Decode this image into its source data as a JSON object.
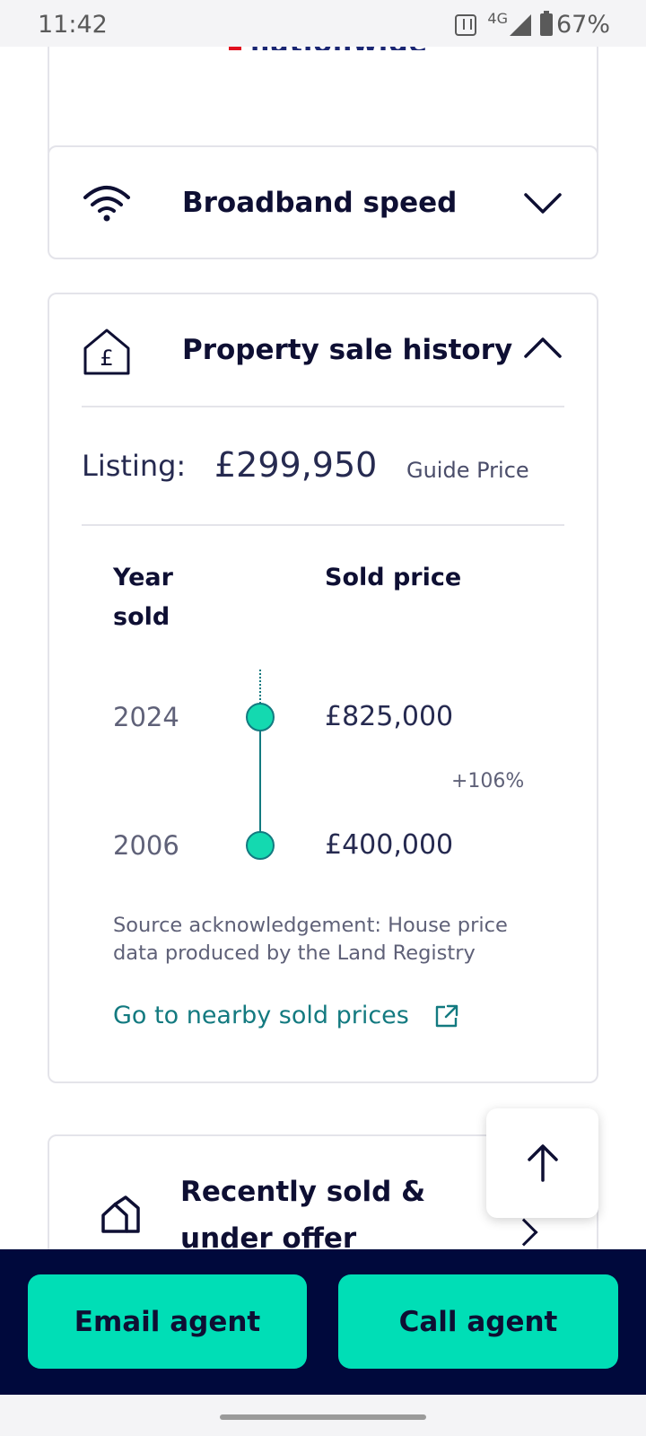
{
  "status_bar": {
    "time": "11:42",
    "network": "4G",
    "battery": "67%"
  },
  "top_card": {
    "logo_text": "nationwide"
  },
  "broadband": {
    "title": "Broadband speed"
  },
  "history": {
    "title": "Property sale history",
    "listing_label": "Listing:",
    "listing_price": "£299,950",
    "listing_type": "Guide Price",
    "col_year": "Year sold",
    "col_price": "Sold price",
    "sales": [
      {
        "year": "2024",
        "price": "£825,000"
      },
      {
        "year": "2006",
        "price": "£400,000"
      }
    ],
    "change": "+106%",
    "source": "Source acknowledgement: House price data produced by the Land Registry",
    "nearby_link": "Go to nearby sold prices"
  },
  "recent": {
    "title": "Recently sold & under offer"
  },
  "actions": {
    "email": "Email agent",
    "call": "Call agent"
  },
  "colors": {
    "accent": "#00deb6",
    "navy": "#00093c",
    "teal": "#137a80"
  }
}
